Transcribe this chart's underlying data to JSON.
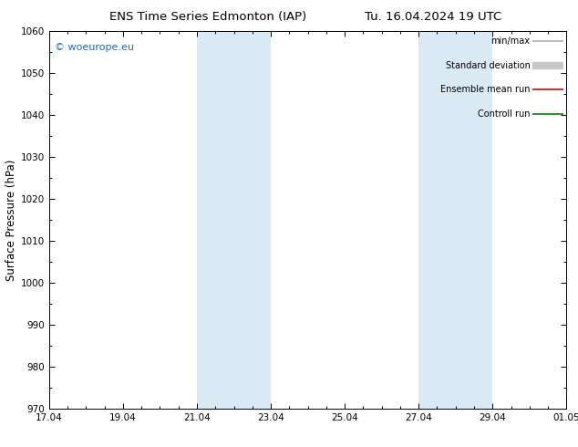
{
  "title_left": "ENS Time Series Edmonton (IAP)",
  "title_right": "Tu. 16.04.2024 19 UTC",
  "ylabel": "Surface Pressure (hPa)",
  "ylim": [
    970,
    1060
  ],
  "yticks": [
    970,
    980,
    990,
    1000,
    1010,
    1020,
    1030,
    1040,
    1050,
    1060
  ],
  "xtick_labels": [
    "17.04",
    "19.04",
    "21.04",
    "23.04",
    "25.04",
    "27.04",
    "29.04",
    "01.05"
  ],
  "xtick_positions": [
    0,
    2,
    4,
    6,
    8,
    10,
    12,
    14
  ],
  "shaded_regions": [
    {
      "start": 4,
      "end": 6
    },
    {
      "start": 10,
      "end": 12
    }
  ],
  "shaded_color": "#daeaf5",
  "watermark_text": "© woeurope.eu",
  "watermark_color": "#1a6ad4",
  "legend_items": [
    {
      "label": "min/max",
      "color": "#b0b0b0",
      "lw": 1.2
    },
    {
      "label": "Standard deviation",
      "color": "#c8c8c8",
      "lw": 6
    },
    {
      "label": "Ensemble mean run",
      "color": "#dd0000",
      "lw": 1.2
    },
    {
      "label": "Controll run",
      "color": "#008000",
      "lw": 1.2
    }
  ],
  "background_color": "#ffffff",
  "plot_bg_color": "#ffffff",
  "tick_color": "#000000",
  "spine_linewidth": 0.7,
  "title_fontsize": 9.5,
  "ylabel_fontsize": 8.5,
  "tick_labelsize": 7.5,
  "legend_fontsize": 7.0,
  "watermark_fontsize": 8.0
}
